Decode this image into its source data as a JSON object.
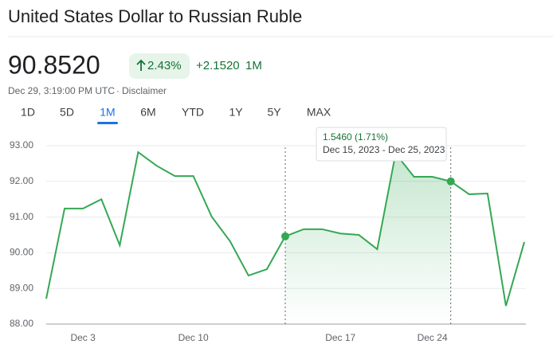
{
  "header": {
    "title": "United States Dollar to Russian Ruble",
    "price": "90.8520",
    "change_pct": "2.43%",
    "change_abs": "+2.1520",
    "period": "1M",
    "timestamp": "Dec 29, 3:19:00 PM UTC",
    "separator": "·",
    "disclaimer": "Disclaimer"
  },
  "tabs": [
    "1D",
    "5D",
    "1M",
    "6M",
    "YTD",
    "1Y",
    "5Y",
    "MAX"
  ],
  "active_tab": 2,
  "tooltip": {
    "change": "1.5460 (1.71%)",
    "range": "Dec 15, 2023 - Dec 25, 2023"
  },
  "chart_data": {
    "type": "line",
    "color": "#34a853",
    "categories": [
      null,
      null,
      "Dec 3",
      null,
      null,
      null,
      null,
      null,
      "Dec 10",
      null,
      null,
      null,
      null,
      null,
      null,
      null,
      "Dec 17",
      null,
      null,
      null,
      null,
      "Dec 24",
      null,
      null,
      null,
      null,
      null
    ],
    "values": [
      88.71,
      91.24,
      91.24,
      91.5,
      90.21,
      92.82,
      92.44,
      92.15,
      92.15,
      91.01,
      90.32,
      89.36,
      89.54,
      90.46,
      90.66,
      90.66,
      90.54,
      90.5,
      90.1,
      92.78,
      92.13,
      92.13,
      92.0,
      91.64,
      91.66,
      88.51,
      90.3
    ],
    "highlight": [
      13,
      22
    ],
    "ylim": [
      88,
      93
    ],
    "yticks": [
      {
        "value": 88,
        "label": "88.00"
      },
      {
        "value": 89,
        "label": "89.00"
      },
      {
        "value": 90,
        "label": "90.00"
      },
      {
        "value": 91,
        "label": "91.00"
      },
      {
        "value": 92,
        "label": "92.00"
      },
      {
        "value": 93,
        "label": "93.00"
      }
    ],
    "grid": true
  }
}
